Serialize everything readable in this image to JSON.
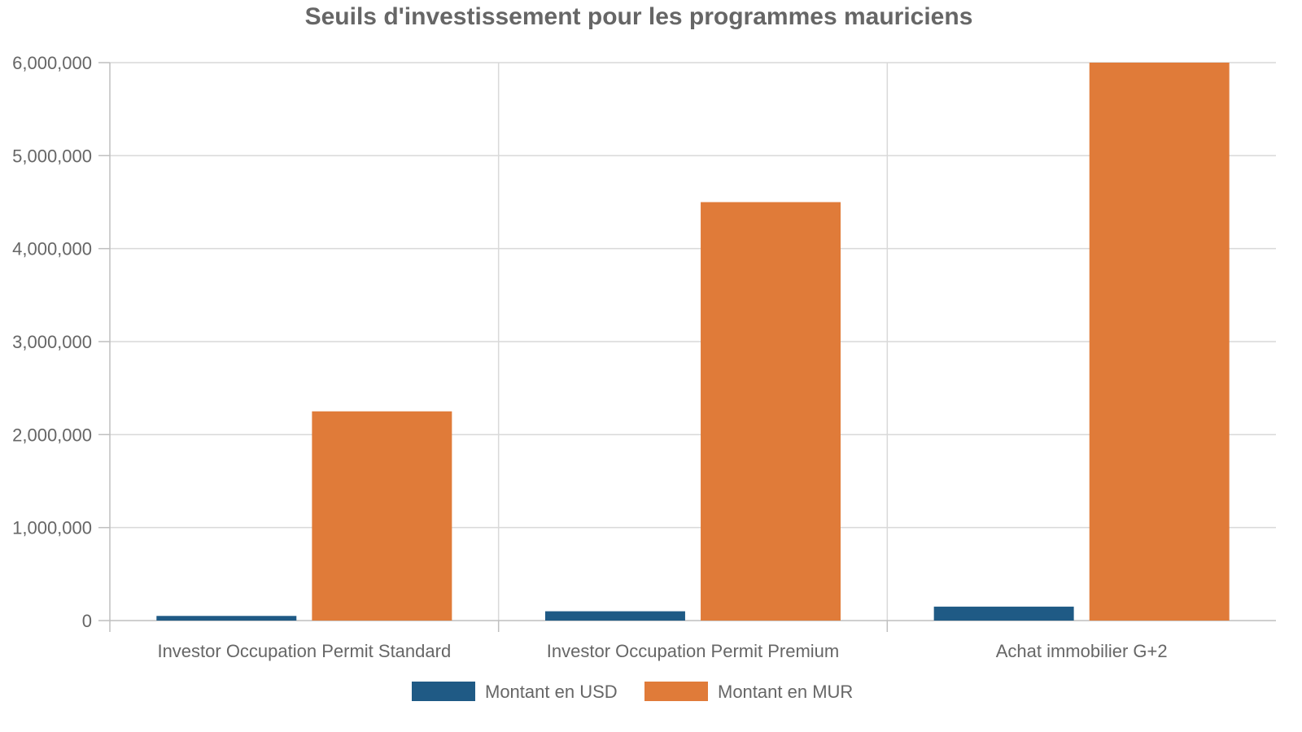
{
  "chart_data": {
    "type": "bar",
    "title": "Seuils d'investissement pour les programmes mauriciens",
    "categories": [
      "Investor Occupation Permit Standard",
      "Investor Occupation Permit Premium",
      "Achat immobilier G+2"
    ],
    "series": [
      {
        "name": "Montant en USD",
        "values": [
          50000,
          100000,
          150000
        ],
        "color": "#1f5a85"
      },
      {
        "name": "Montant en MUR",
        "values": [
          2250000,
          4500000,
          6000000
        ],
        "color": "#e07b39"
      }
    ],
    "y_ticks": [
      0,
      1000000,
      2000000,
      3000000,
      4000000,
      5000000,
      6000000
    ],
    "y_tick_labels": [
      "0",
      "1,000,000",
      "2,000,000",
      "3,000,000",
      "4,000,000",
      "5,000,000",
      "6,000,000"
    ],
    "ylim": [
      0,
      6000000
    ],
    "grid": true,
    "legend_position": "bottom"
  }
}
